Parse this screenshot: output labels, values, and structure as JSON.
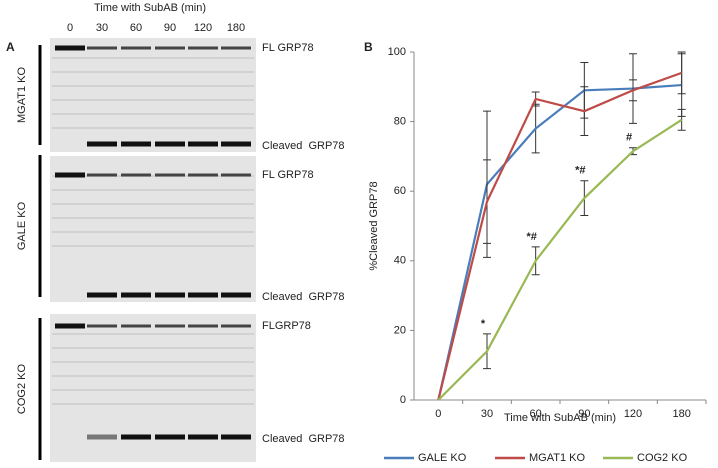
{
  "panel_a": {
    "label": "A",
    "title": "Time with SubAB (min)",
    "lanes": [
      "0",
      "30",
      "60",
      "90",
      "120",
      "180"
    ],
    "blots": [
      {
        "name": "MGAT1 KO",
        "top_label": "FL GRP78",
        "bottom_label": "Cleaved  GRP78"
      },
      {
        "name": "GALE KO",
        "top_label": "FL GRP78",
        "bottom_label": "Cleaved  GRP78"
      },
      {
        "name": "COG2 KO",
        "top_label": "FLGRP78",
        "bottom_label": "Cleaved  GRP78"
      }
    ]
  },
  "chart_data": {
    "type": "line",
    "label": "B",
    "x_label": "Time with SubAB (min)",
    "y_label": "%Cleaved GRP78",
    "categories": [
      "0",
      "30",
      "60",
      "90",
      "120",
      "180"
    ],
    "ylim": [
      0,
      100
    ],
    "yticks": [
      0,
      20,
      40,
      60,
      80,
      100
    ],
    "series": [
      {
        "name": "GALE KO",
        "color": "#4a7ebb",
        "values": [
          0,
          62,
          78,
          89,
          89.5,
          90.5
        ],
        "errors": [
          0,
          21,
          7,
          8,
          10,
          9
        ]
      },
      {
        "name": "MGAT1 KO",
        "color": "#be4b48",
        "values": [
          0,
          57,
          86.5,
          83,
          89,
          94
        ],
        "errors": [
          0,
          12,
          2,
          7,
          3,
          6
        ]
      },
      {
        "name": "COG2 KO",
        "color": "#98b954",
        "values": [
          0,
          14,
          40,
          58,
          71.5,
          80.5
        ],
        "errors": [
          0,
          5,
          4,
          5,
          1,
          3
        ]
      }
    ],
    "annotations": [
      {
        "text": "*",
        "x": "30"
      },
      {
        "text": "*#",
        "x": "60"
      },
      {
        "text": "*#",
        "x": "90"
      },
      {
        "text": "#",
        "x": "120"
      }
    ]
  }
}
